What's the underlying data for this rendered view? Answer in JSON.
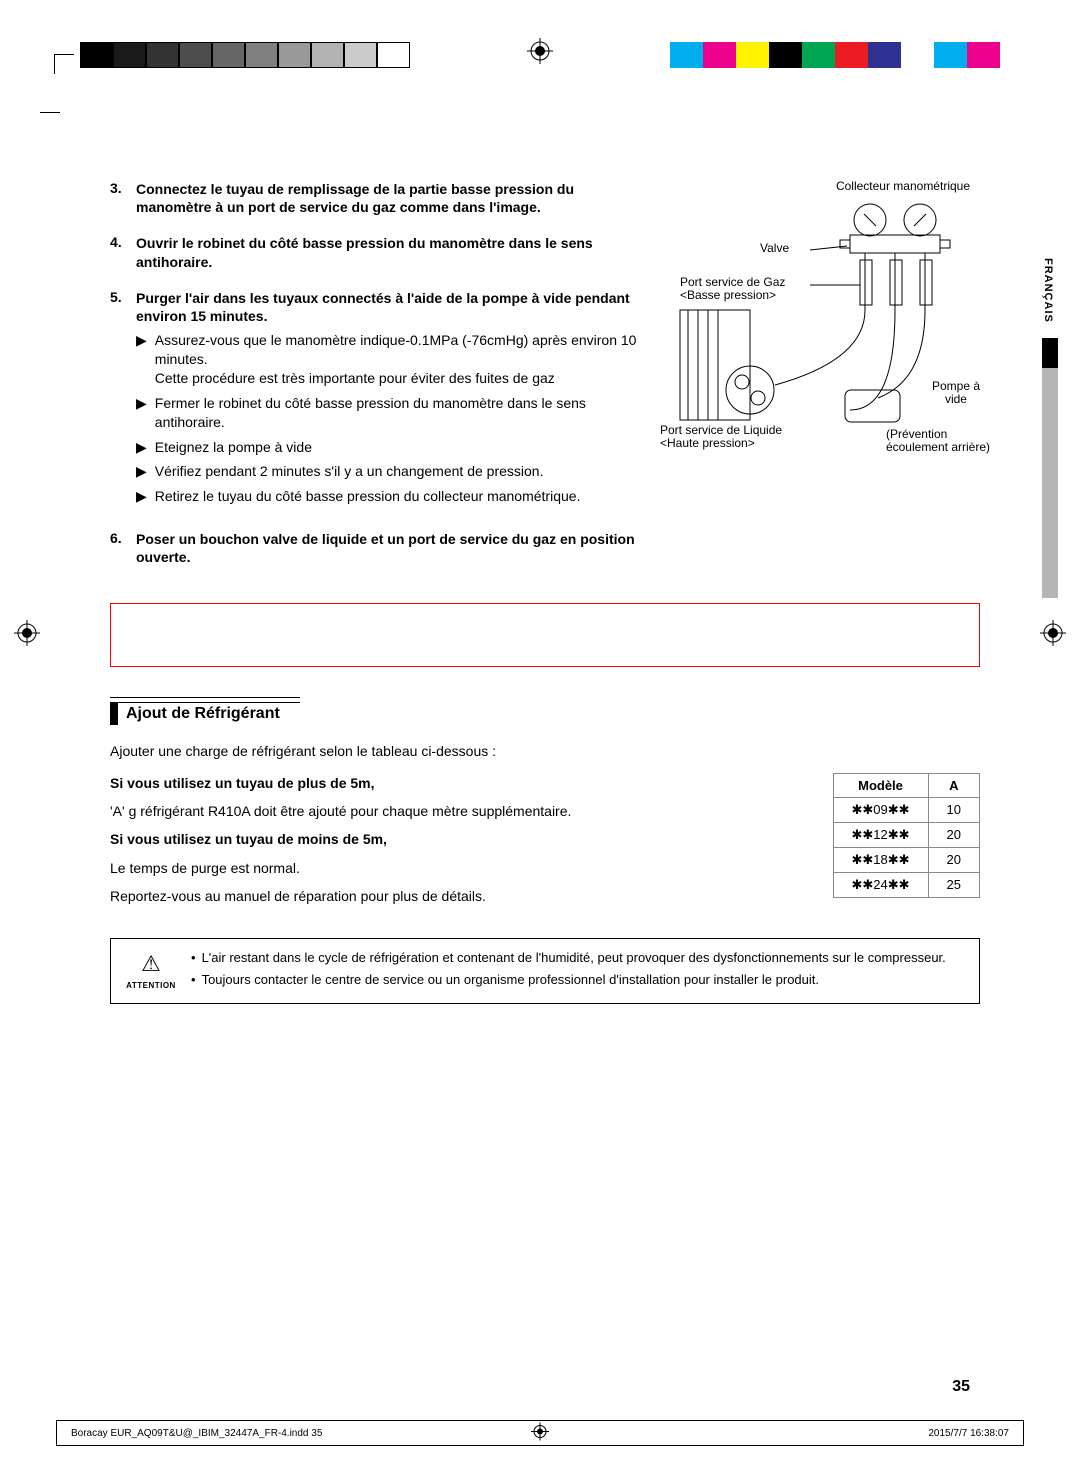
{
  "printer_marks": {
    "left_bar_colors": [
      "#000000",
      "#1a1a1a",
      "#333333",
      "#4d4d4d",
      "#666666",
      "#808080",
      "#999999",
      "#b3b3b3",
      "#cccccc",
      "#ffffff"
    ],
    "right_bar_colors": [
      "#00aeef",
      "#ec008c",
      "#fff200",
      "#000000",
      "#00a651",
      "#ed1c24",
      "#2e3192",
      "#ffffff",
      "#00aeef",
      "#ec008c"
    ],
    "left_border": "#000000"
  },
  "lang_tab": "FRANÇAIS",
  "steps": [
    {
      "n": "3.",
      "text": "Connectez le tuyau de remplissage de la partie basse pression du manomètre à un port de service du gaz comme dans l'image."
    },
    {
      "n": "4.",
      "text": "Ouvrir le robinet du côté basse pression du manomètre dans le sens antihoraire."
    },
    {
      "n": "5.",
      "text": "Purger l'air dans les tuyaux connectés à l'aide de la pompe à vide pendant environ 15 minutes.",
      "sub": [
        "Assurez-vous que le manomètre indique-0.1MPa (-76cmHg) après environ 10 minutes.\nCette procédure est très importante pour éviter des fuites de gaz",
        "Fermer le robinet du côté basse pression du manomètre dans le sens antihoraire.",
        "Eteignez la pompe à vide",
        "Vérifiez pendant 2 minutes s'il y a un changement de pression.",
        "Retirez le tuyau du côté basse pression du collecteur manométrique."
      ]
    },
    {
      "n": "6.",
      "text": "Poser un bouchon valve de liquide et un port de service du gaz en position ouverte."
    }
  ],
  "diagram": {
    "collector": "Collecteur manométrique",
    "valve": "Valve",
    "gas_port_l1": "Port service de Gaz",
    "gas_port_l2": "<Basse pression>",
    "pump_l1": "Pompe à",
    "pump_l2": "vide",
    "liq_port_l1": "Port service de Liquide",
    "liq_port_l2": "<Haute pression>",
    "prev_l1": "(Prévention",
    "prev_l2": "écoulement arrière)"
  },
  "section_title": "Ajout de Réfrigérant",
  "refrig": {
    "intro": "Ajouter une charge de réfrigérant selon le tableau ci-dessous :",
    "h1": "Si vous utilisez un tuyau de plus de 5m,",
    "p1": "'A' g réfrigérant R410A doit être ajouté pour chaque mètre supplémentaire.",
    "h2": "Si vous utilisez un tuyau de moins de 5m,",
    "p2": "Le temps de purge est normal.",
    "p3": "Reportez-vous au manuel de réparation pour plus de détails."
  },
  "table": {
    "head_model": "Modèle",
    "head_a": "A",
    "rows": [
      {
        "model": "✱✱09✱✱",
        "a": "10"
      },
      {
        "model": "✱✱12✱✱",
        "a": "20"
      },
      {
        "model": "✱✱18✱✱",
        "a": "20"
      },
      {
        "model": "✱✱24✱✱",
        "a": "25"
      }
    ]
  },
  "attention": {
    "caption": "ATTENTION",
    "items": [
      "L'air restant dans le cycle de réfrigération et contenant de l'humidité, peut provoquer des dysfonctionnements sur le compresseur.",
      "Toujours contacter le centre de service ou un organisme professionnel d'installation pour installer le produit."
    ]
  },
  "page_number": "35",
  "footer": {
    "left": "Boracay EUR_AQ09T&U@_IBIM_32447A_FR-4.indd   35",
    "right": "2015/7/7   16:38:07"
  }
}
